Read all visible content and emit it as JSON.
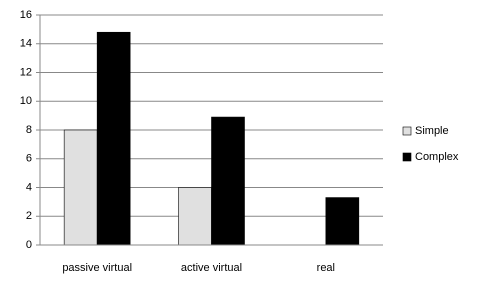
{
  "chart_data": {
    "type": "bar",
    "categories": [
      "passive virtual",
      "active virtual",
      "real"
    ],
    "series": [
      {
        "name": "Simple",
        "color": "#e0e0e0",
        "values": [
          8,
          4,
          0
        ]
      },
      {
        "name": "Complex",
        "color": "#000000",
        "values": [
          14.8,
          8.9,
          3.3
        ]
      }
    ],
    "ylim": [
      0,
      16
    ],
    "yticks": [
      0,
      2,
      4,
      6,
      8,
      10,
      12,
      14,
      16
    ],
    "grid": true,
    "legend": "right"
  }
}
